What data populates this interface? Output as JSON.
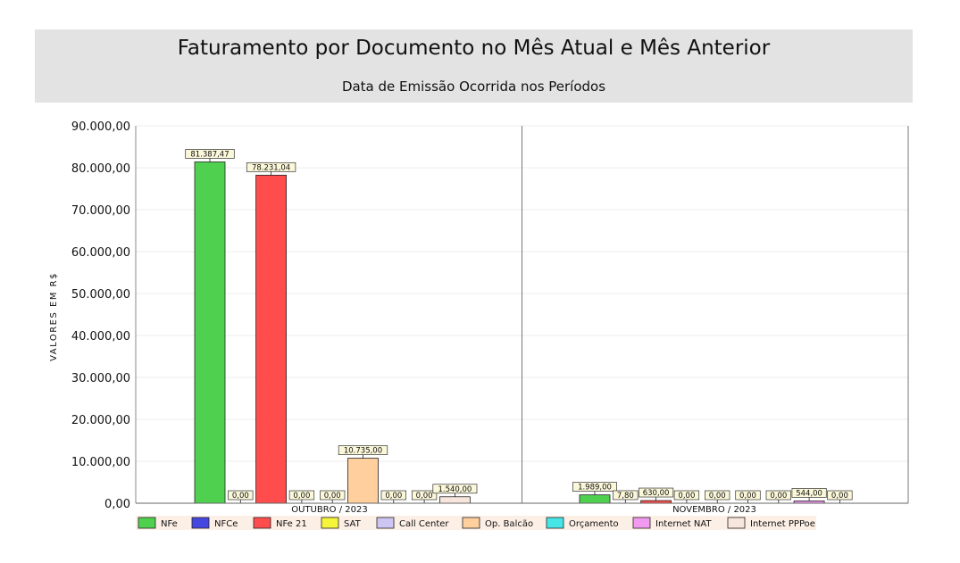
{
  "chart_data": {
    "type": "bar",
    "title": "Faturamento por Documento no Mês Atual e Mês Anterior",
    "subtitle": "Data de Emissão Ocorrida nos Períodos",
    "ylabel": "VALORES EM R$",
    "ylim": [
      0,
      90000
    ],
    "yticks": [
      0,
      10000,
      20000,
      30000,
      40000,
      50000,
      60000,
      70000,
      80000,
      90000
    ],
    "ytick_labels": [
      "0,00",
      "10.000,00",
      "20.000,00",
      "30.000,00",
      "40.000,00",
      "50.000,00",
      "60.000,00",
      "70.000,00",
      "80.000,00",
      "90.000,00"
    ],
    "categories": [
      "OUTUBRO / 2023",
      "NOVEMBRO / 2023"
    ],
    "grid": true,
    "legend_position": "bottom",
    "series": [
      {
        "name": "NFe",
        "color": "#4fd14f",
        "values": [
          81387.47,
          1989.0
        ],
        "labels": [
          "81.387,47",
          "1.989,00"
        ]
      },
      {
        "name": "NFCe",
        "color": "#4646e0",
        "values": [
          0,
          7.8
        ],
        "labels": [
          "0,00",
          "7,80"
        ]
      },
      {
        "name": "NFe 21",
        "color": "#ff4d4d",
        "values": [
          78231.04,
          630.0
        ],
        "labels": [
          "78.231,04",
          "630,00"
        ]
      },
      {
        "name": "SAT",
        "color": "#f5f53a",
        "values": [
          0,
          0
        ],
        "labels": [
          "0,00",
          "0,00"
        ]
      },
      {
        "name": "Call Center",
        "color": "#cdc6f2",
        "values": [
          0,
          0
        ],
        "labels": [
          "0,00",
          "0,00"
        ]
      },
      {
        "name": "Op. Balcão",
        "color": "#ffcf9e",
        "values": [
          10735.0,
          0
        ],
        "labels": [
          "10.735,00",
          "0,00"
        ]
      },
      {
        "name": "Orçamento",
        "color": "#46e6e6",
        "values": [
          0,
          0
        ],
        "labels": [
          "0,00",
          "0,00"
        ]
      },
      {
        "name": "Internet NAT",
        "color": "#f29af0",
        "values": [
          0,
          544.0
        ],
        "labels": [
          "0,00",
          "544,00"
        ]
      },
      {
        "name": "Internet PPPoe",
        "color": "#f7e6dc",
        "values": [
          1540.0,
          0
        ],
        "labels": [
          "1.540,00",
          "0,00"
        ]
      }
    ]
  }
}
